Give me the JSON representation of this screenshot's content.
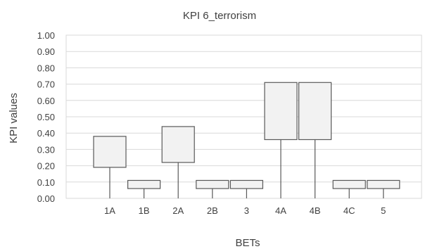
{
  "chart_data": {
    "type": "box",
    "title": "KPI 6_terrorism",
    "xlabel": "BETs",
    "ylabel": "KPI values",
    "ylim": [
      0,
      1
    ],
    "yticks": [
      "0.00",
      "0.10",
      "0.20",
      "0.30",
      "0.40",
      "0.50",
      "0.60",
      "0.70",
      "0.80",
      "0.90",
      "1.00"
    ],
    "grid": true,
    "categories": [
      "1A",
      "1B",
      "2A",
      "2B",
      "3",
      "4A",
      "4B",
      "4C",
      "5"
    ],
    "series": [
      {
        "q1": [
          0.19,
          0.06,
          0.22,
          0.06,
          0.06,
          0.36,
          0.36,
          0.06,
          0.06
        ],
        "q3": [
          0.38,
          0.11,
          0.44,
          0.11,
          0.11,
          0.71,
          0.71,
          0.11,
          0.11
        ],
        "min": [
          0.0,
          0.0,
          0.0,
          0.0,
          0.0,
          0.0,
          0.0,
          0.0,
          0.0
        ]
      }
    ]
  },
  "colors": {
    "box_fill": "#f2f2f2",
    "box_stroke": "#595959",
    "grid": "#d9d9d9",
    "text": "#404040"
  }
}
